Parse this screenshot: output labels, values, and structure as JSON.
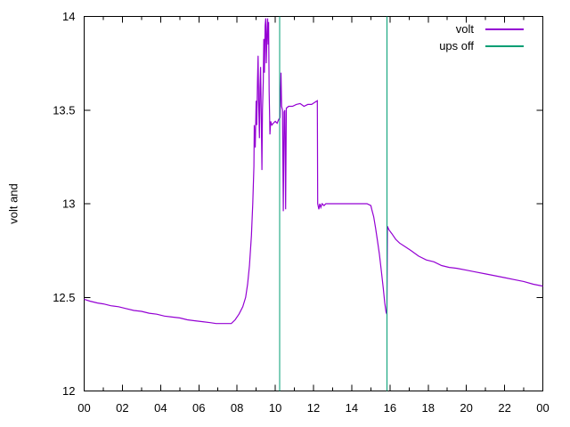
{
  "chart_data": {
    "type": "line",
    "title": "",
    "xlabel": "",
    "ylabel": "volt and",
    "xlim": [
      0,
      24
    ],
    "ylim": [
      12,
      14
    ],
    "grid": false,
    "background_color": "#ffffff",
    "axis_color": "#000000",
    "x_major_ticks": [
      0,
      2,
      4,
      6,
      8,
      10,
      12,
      14,
      16,
      18,
      20,
      22,
      24
    ],
    "x_tick_labels": [
      "00",
      "02",
      "04",
      "06",
      "08",
      "10",
      "12",
      "14",
      "16",
      "18",
      "20",
      "22",
      "00"
    ],
    "x_minor_tick_step": 1,
    "y_ticks": [
      12,
      12.5,
      13,
      13.5,
      14
    ],
    "y_tick_labels": [
      "12",
      "12.5",
      "13",
      "13.5",
      "14"
    ],
    "legend": {
      "position": "top-right-inside",
      "entries": [
        "volt",
        "ups off"
      ]
    },
    "series": [
      {
        "name": "volt",
        "color": "#9400D3",
        "style": "line",
        "points": [
          [
            0.0,
            12.49
          ],
          [
            0.3,
            12.48
          ],
          [
            0.7,
            12.47
          ],
          [
            1.0,
            12.465
          ],
          [
            1.4,
            12.455
          ],
          [
            1.8,
            12.45
          ],
          [
            2.2,
            12.44
          ],
          [
            2.6,
            12.43
          ],
          [
            3.0,
            12.425
          ],
          [
            3.4,
            12.415
          ],
          [
            3.8,
            12.41
          ],
          [
            4.2,
            12.4
          ],
          [
            4.6,
            12.395
          ],
          [
            5.0,
            12.39
          ],
          [
            5.4,
            12.38
          ],
          [
            5.8,
            12.375
          ],
          [
            6.2,
            12.37
          ],
          [
            6.6,
            12.365
          ],
          [
            6.9,
            12.36
          ],
          [
            7.3,
            12.36
          ],
          [
            7.7,
            12.36
          ],
          [
            7.9,
            12.38
          ],
          [
            8.1,
            12.41
          ],
          [
            8.3,
            12.45
          ],
          [
            8.45,
            12.5
          ],
          [
            8.55,
            12.57
          ],
          [
            8.65,
            12.67
          ],
          [
            8.75,
            12.83
          ],
          [
            8.82,
            13.0
          ],
          [
            8.88,
            13.2
          ],
          [
            8.9,
            13.42
          ],
          [
            8.95,
            13.3
          ],
          [
            9.0,
            13.55
          ],
          [
            9.03,
            13.42
          ],
          [
            9.07,
            13.65
          ],
          [
            9.1,
            13.79
          ],
          [
            9.13,
            13.55
          ],
          [
            9.17,
            13.35
          ],
          [
            9.2,
            13.62
          ],
          [
            9.23,
            13.73
          ],
          [
            9.27,
            13.45
          ],
          [
            9.3,
            13.18
          ],
          [
            9.33,
            13.5
          ],
          [
            9.37,
            13.65
          ],
          [
            9.4,
            13.88
          ],
          [
            9.43,
            13.7
          ],
          [
            9.47,
            13.95
          ],
          [
            9.5,
            13.99
          ],
          [
            9.53,
            13.75
          ],
          [
            9.57,
            13.92
          ],
          [
            9.6,
            13.99
          ],
          [
            9.63,
            13.85
          ],
          [
            9.65,
            13.97
          ],
          [
            9.68,
            13.6
          ],
          [
            9.72,
            13.37
          ],
          [
            9.76,
            13.44
          ],
          [
            9.82,
            13.42
          ],
          [
            9.9,
            13.43
          ],
          [
            10.0,
            13.44
          ],
          [
            10.1,
            13.43
          ],
          [
            10.18,
            13.45
          ],
          [
            10.25,
            13.46
          ],
          [
            10.3,
            13.7
          ],
          [
            10.33,
            13.52
          ],
          [
            10.38,
            13.5
          ],
          [
            10.42,
            12.96
          ],
          [
            10.46,
            13.49
          ],
          [
            10.5,
            13.5
          ],
          [
            10.54,
            12.97
          ],
          [
            10.58,
            13.51
          ],
          [
            10.7,
            13.52
          ],
          [
            10.9,
            13.52
          ],
          [
            11.1,
            13.53
          ],
          [
            11.3,
            13.535
          ],
          [
            11.5,
            13.52
          ],
          [
            11.7,
            13.53
          ],
          [
            11.9,
            13.53
          ],
          [
            12.05,
            13.54
          ],
          [
            12.2,
            13.55
          ],
          [
            12.22,
            13.0
          ],
          [
            12.28,
            12.97
          ],
          [
            12.33,
            13.0
          ],
          [
            12.38,
            12.98
          ],
          [
            12.45,
            13.0
          ],
          [
            12.55,
            12.99
          ],
          [
            12.65,
            13.0
          ],
          [
            12.8,
            13.0
          ],
          [
            13.2,
            13.0
          ],
          [
            13.6,
            13.0
          ],
          [
            14.0,
            13.0
          ],
          [
            14.4,
            13.0
          ],
          [
            14.8,
            13.0
          ],
          [
            15.0,
            12.99
          ],
          [
            15.05,
            12.97
          ],
          [
            15.15,
            12.93
          ],
          [
            15.25,
            12.87
          ],
          [
            15.35,
            12.8
          ],
          [
            15.45,
            12.73
          ],
          [
            15.55,
            12.64
          ],
          [
            15.65,
            12.55
          ],
          [
            15.73,
            12.47
          ],
          [
            15.8,
            12.42
          ],
          [
            15.84,
            12.41
          ],
          [
            15.87,
            12.88
          ],
          [
            15.95,
            12.86
          ],
          [
            16.1,
            12.84
          ],
          [
            16.3,
            12.81
          ],
          [
            16.5,
            12.79
          ],
          [
            16.8,
            12.77
          ],
          [
            17.1,
            12.75
          ],
          [
            17.5,
            12.72
          ],
          [
            17.9,
            12.7
          ],
          [
            18.3,
            12.69
          ],
          [
            18.7,
            12.67
          ],
          [
            19.1,
            12.66
          ],
          [
            19.5,
            12.655
          ],
          [
            20.0,
            12.645
          ],
          [
            20.5,
            12.635
          ],
          [
            21.0,
            12.625
          ],
          [
            21.5,
            12.615
          ],
          [
            22.0,
            12.605
          ],
          [
            22.5,
            12.595
          ],
          [
            23.0,
            12.585
          ],
          [
            23.5,
            12.57
          ],
          [
            24.0,
            12.56
          ]
        ]
      },
      {
        "name": "ups off",
        "color": "#009E73",
        "style": "vlines",
        "x": [
          10.23,
          15.84
        ]
      }
    ]
  }
}
